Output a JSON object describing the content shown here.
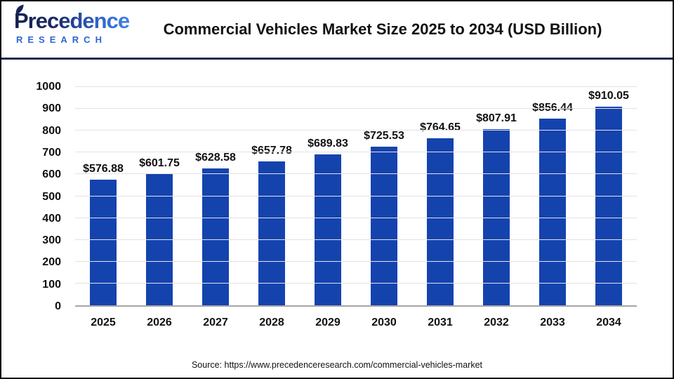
{
  "header": {
    "logo": {
      "brand_top": "Precedence",
      "brand_bottom": "RESEARCH"
    },
    "title": "Commercial Vehicles Market Size 2025 to 2034 (USD Billion)"
  },
  "chart_data": {
    "type": "bar",
    "title": "Commercial Vehicles Market Size 2025 to 2034 (USD Billion)",
    "categories": [
      "2025",
      "2026",
      "2027",
      "2028",
      "2029",
      "2030",
      "2031",
      "2032",
      "2033",
      "2034"
    ],
    "values": [
      576.88,
      601.75,
      628.58,
      657.78,
      689.83,
      725.53,
      764.65,
      807.91,
      856.44,
      910.05
    ],
    "label_prefix": "$",
    "xlabel": "",
    "ylabel": "",
    "ylim": [
      0,
      1000
    ],
    "yticks": [
      0,
      100,
      200,
      300,
      400,
      500,
      600,
      700,
      800,
      900,
      1000
    ],
    "bar_color": "#1543ae",
    "grid": true,
    "legend": false
  },
  "footer": {
    "source": "Source: https://www.precedenceresearch.com/commercial-vehicles-market"
  },
  "colors": {
    "bar": "#1543ae",
    "separator": "#1c2951",
    "gridline": "#e3e3e3",
    "axis_baseline": "#a6a6a6",
    "brand_navy": "#151f4e",
    "brand_blue": "#2e66d0"
  }
}
